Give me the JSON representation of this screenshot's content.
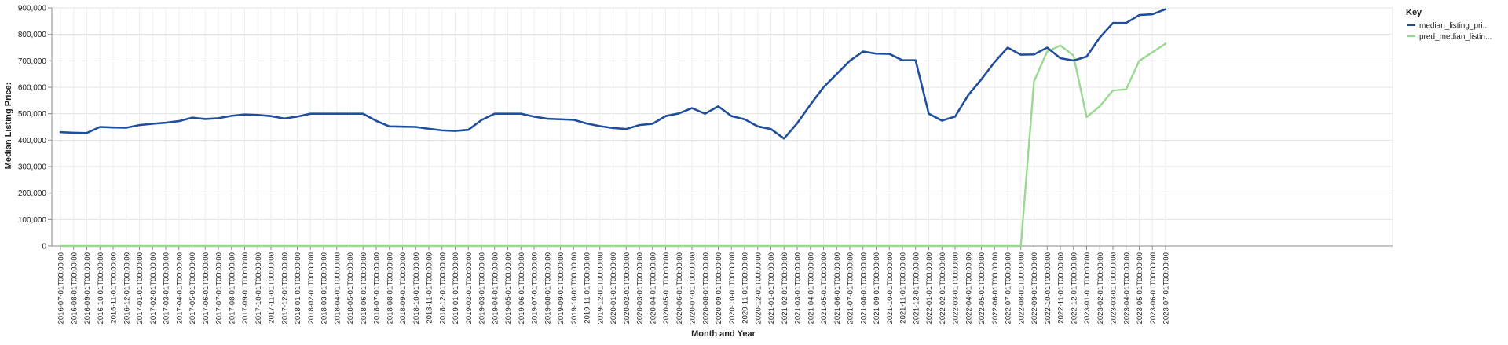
{
  "chart_data": {
    "type": "line",
    "xlabel": "Month and Year",
    "ylabel": "Median Listing Price:",
    "ylim": [
      0,
      900000
    ],
    "yticks": [
      "0",
      "100,000",
      "200,000",
      "300,000",
      "400,000",
      "500,000",
      "600,000",
      "700,000",
      "800,000",
      "900,000"
    ],
    "ytick_values": [
      0,
      100000,
      200000,
      300000,
      400000,
      500000,
      600000,
      700000,
      800000,
      900000
    ],
    "grid": true,
    "legend_position": "right",
    "legend_title": "Key",
    "x": [
      "2016-07-01T00:00:00",
      "2016-08-01T00:00:00",
      "2016-09-01T00:00:00",
      "2016-10-01T00:00:00",
      "2016-11-01T00:00:00",
      "2016-12-01T00:00:00",
      "2017-01-01T00:00:00",
      "2017-02-01T00:00:00",
      "2017-03-01T00:00:00",
      "2017-04-01T00:00:00",
      "2017-05-01T00:00:00",
      "2017-06-01T00:00:00",
      "2017-07-01T00:00:00",
      "2017-08-01T00:00:00",
      "2017-09-01T00:00:00",
      "2017-10-01T00:00:00",
      "2017-11-01T00:00:00",
      "2017-12-01T00:00:00",
      "2018-01-01T00:00:00",
      "2018-02-01T00:00:00",
      "2018-03-01T00:00:00",
      "2018-04-01T00:00:00",
      "2018-05-01T00:00:00",
      "2018-06-01T00:00:00",
      "2018-07-01T00:00:00",
      "2018-08-01T00:00:00",
      "2018-09-01T00:00:00",
      "2018-10-01T00:00:00",
      "2018-11-01T00:00:00",
      "2018-12-01T00:00:00",
      "2019-01-01T00:00:00",
      "2019-02-01T00:00:00",
      "2019-03-01T00:00:00",
      "2019-04-01T00:00:00",
      "2019-05-01T00:00:00",
      "2019-06-01T00:00:00",
      "2019-07-01T00:00:00",
      "2019-08-01T00:00:00",
      "2019-09-01T00:00:00",
      "2019-10-01T00:00:00",
      "2019-11-01T00:00:00",
      "2019-12-01T00:00:00",
      "2020-01-01T00:00:00",
      "2020-02-01T00:00:00",
      "2020-03-01T00:00:00",
      "2020-04-01T00:00:00",
      "2020-05-01T00:00:00",
      "2020-06-01T00:00:00",
      "2020-07-01T00:00:00",
      "2020-08-01T00:00:00",
      "2020-09-01T00:00:00",
      "2020-10-01T00:00:00",
      "2020-11-01T00:00:00",
      "2020-12-01T00:00:00",
      "2021-01-01T00:00:00",
      "2021-02-01T00:00:00",
      "2021-03-01T00:00:00",
      "2021-04-01T00:00:00",
      "2021-05-01T00:00:00",
      "2021-06-01T00:00:00",
      "2021-07-01T00:00:00",
      "2021-08-01T00:00:00",
      "2021-09-01T00:00:00",
      "2021-10-01T00:00:00",
      "2021-11-01T00:00:00",
      "2021-12-01T00:00:00",
      "2022-01-01T00:00:00",
      "2022-02-01T00:00:00",
      "2022-03-01T00:00:00",
      "2022-04-01T00:00:00",
      "2022-05-01T00:00:00",
      "2022-06-01T00:00:00",
      "2022-07-01T00:00:00",
      "2022-08-01T00:00:00",
      "2022-09-01T00:00:00",
      "2022-10-01T00:00:00",
      "2022-11-01T00:00:00",
      "2022-12-01T00:00:00",
      "2023-01-01T00:00:00",
      "2023-02-01T00:00:00",
      "2023-03-01T00:00:00",
      "2023-04-01T00:00:00",
      "2023-05-01T00:00:00",
      "2023-06-01T00:00:00",
      "2023-07-01T00:00:00"
    ],
    "series": [
      {
        "name": "median_listing_pri...",
        "color": "#1f4e9c",
        "values": [
          430000,
          428000,
          427000,
          450000,
          448000,
          447000,
          457000,
          462000,
          466000,
          472000,
          485000,
          480000,
          483000,
          492000,
          497000,
          495000,
          491000,
          482000,
          489000,
          500000,
          500000,
          500000,
          500000,
          500000,
          473000,
          452000,
          451000,
          450000,
          443000,
          437000,
          435000,
          439000,
          476000,
          500000,
          500000,
          500000,
          489000,
          481000,
          479000,
          477000,
          463000,
          453000,
          446000,
          442000,
          457000,
          462000,
          491000,
          501000,
          521000,
          500000,
          528000,
          491000,
          479000,
          452000,
          442000,
          406000,
          464000,
          534000,
          600000,
          650000,
          700000,
          735000,
          727000,
          726000,
          702000,
          702000,
          500000,
          474000,
          489000,
          570000,
          630000,
          695000,
          750000,
          723000,
          724000,
          750000,
          710000,
          701000,
          716000,
          788000,
          843000,
          843000,
          873000,
          876000,
          895000
        ]
      },
      {
        "name": "pred_median_listin...",
        "color": "#98d890",
        "values": [
          0,
          0,
          0,
          0,
          0,
          0,
          0,
          0,
          0,
          0,
          0,
          0,
          0,
          0,
          0,
          0,
          0,
          0,
          0,
          0,
          0,
          0,
          0,
          0,
          0,
          0,
          0,
          0,
          0,
          0,
          0,
          0,
          0,
          0,
          0,
          0,
          0,
          0,
          0,
          0,
          0,
          0,
          0,
          0,
          0,
          0,
          0,
          0,
          0,
          0,
          0,
          0,
          0,
          0,
          0,
          0,
          0,
          0,
          0,
          0,
          0,
          0,
          0,
          0,
          0,
          0,
          0,
          0,
          0,
          0,
          0,
          0,
          0,
          0,
          622000,
          735000,
          758000,
          720000,
          487000,
          528000,
          588000,
          592000,
          700000,
          732000,
          765000
        ]
      }
    ]
  }
}
